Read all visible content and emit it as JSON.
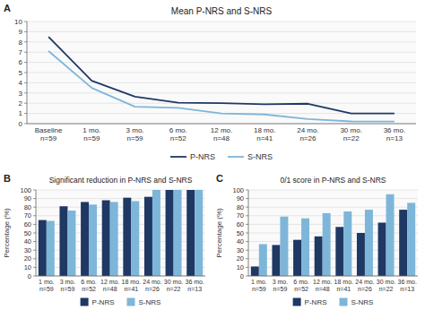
{
  "chart_data": [
    {
      "type": "line",
      "title": "Mean P-NRS and S-NRS",
      "annotations": [
        "A"
      ],
      "categories": [
        "Baseline\nn=59",
        "1 mo.\nn=59",
        "3 mo.\nn=59",
        "6 mo.\nn=52",
        "12 mo.\nn=48",
        "18 mo.\nn=41",
        "24 mo.\nn=26",
        "30 mo.\nn=22",
        "36 mo.\nn=13"
      ],
      "series": [
        {
          "name": "P-NRS",
          "color": "#1f3864",
          "values": [
            8.5,
            4.2,
            2.65,
            2.05,
            2.0,
            1.9,
            1.95,
            1.0,
            1.0
          ]
        },
        {
          "name": "S-NRS",
          "color": "#7eb6d9",
          "values": [
            7.1,
            3.5,
            1.65,
            1.55,
            1.0,
            0.9,
            0.45,
            0.22,
            0.2
          ]
        }
      ],
      "ylim": [
        0,
        10
      ],
      "yticks": [
        0,
        1,
        2,
        3,
        4,
        5,
        6,
        7,
        8,
        9,
        10
      ],
      "grid": true,
      "legend": "bottom"
    },
    {
      "type": "bar",
      "title": "Significant reduction in P-NRS and S-NRS",
      "annotations": [
        "B"
      ],
      "y_label": "Percentage (%)",
      "categories": [
        "1 mo.\nn=59",
        "3 mo.\nn=59",
        "6 mo.\nn=52",
        "12 mo.\nn=48",
        "18 mo.\nn=41",
        "24 mo.\nn=26",
        "30 mo.\nn=22",
        "36 mo.\nn=13"
      ],
      "series": [
        {
          "name": "P-NRS",
          "color": "#1f3864",
          "values": [
            65,
            81,
            86,
            88,
            91,
            92,
            100,
            100
          ]
        },
        {
          "name": "S-NRS",
          "color": "#7eb6d9",
          "values": [
            64,
            76,
            83,
            86,
            87,
            100,
            100,
            100
          ]
        }
      ],
      "ylim": [
        0,
        100
      ],
      "yticks": [
        0,
        10,
        20,
        30,
        40,
        50,
        60,
        70,
        80,
        90,
        100
      ],
      "grid": true,
      "legend": "bottom"
    },
    {
      "type": "bar",
      "title": "0/1 score in P-NRS and S-NRS",
      "annotations": [
        "C"
      ],
      "y_label": "Percentage (%)",
      "categories": [
        "1 mo.\nn=59",
        "3 mo.\nn=59",
        "6 mo.\nn=52",
        "12 mo.\nn=48",
        "18 mo.\nn=41",
        "24 mo.\nn=26",
        "30 mo.\nn=22",
        "36 mo.\nn=13"
      ],
      "series": [
        {
          "name": "P-NRS",
          "color": "#1f3864",
          "values": [
            11,
            36,
            42,
            46,
            57,
            50,
            62,
            77
          ]
        },
        {
          "name": "S-NRS",
          "color": "#7eb6d9",
          "values": [
            37,
            69,
            67,
            73,
            75,
            77,
            95,
            85
          ]
        }
      ],
      "ylim": [
        0,
        100
      ],
      "yticks": [
        0,
        10,
        20,
        30,
        40,
        50,
        60,
        70,
        80,
        90,
        100
      ],
      "grid": true,
      "legend": "bottom"
    }
  ]
}
